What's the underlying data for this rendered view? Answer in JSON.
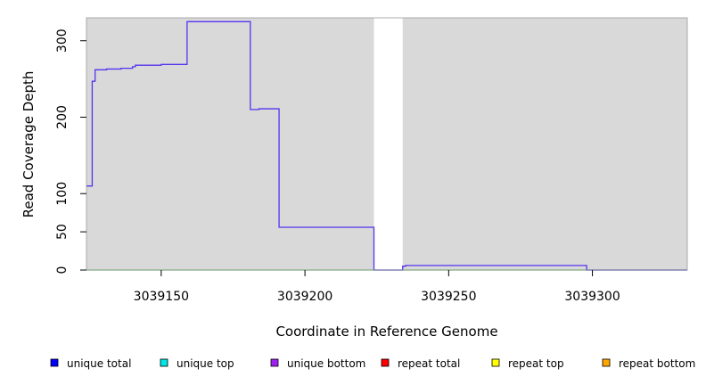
{
  "chart_data": {
    "type": "line",
    "title": "",
    "xlabel": "Coordinate in Reference Genome",
    "ylabel": "Read Coverage Depth",
    "xlim": [
      3039124,
      3039333
    ],
    "ylim": [
      0,
      330
    ],
    "x_ticks": [
      3039150,
      3039200,
      3039250,
      3039300
    ],
    "x_tick_labels": [
      "3039150",
      "3039200",
      "3039250",
      "3039300"
    ],
    "y_ticks": [
      0,
      50,
      100,
      200,
      300
    ],
    "y_tick_labels": [
      "0",
      "50",
      "100",
      "200",
      "300"
    ],
    "gap_region": [
      3039224,
      3039234
    ],
    "grid": false,
    "legend_position": "bottom",
    "series": [
      {
        "name": "unique total",
        "color": "#0000ff",
        "line_color": "#5533ee",
        "step": true,
        "points": [
          [
            3039124,
            110
          ],
          [
            3039126,
            110
          ],
          [
            3039126,
            247
          ],
          [
            3039127,
            247
          ],
          [
            3039127,
            262
          ],
          [
            3039131,
            262
          ],
          [
            3039131,
            263
          ],
          [
            3039136,
            263
          ],
          [
            3039136,
            264
          ],
          [
            3039140,
            264
          ],
          [
            3039140,
            266
          ],
          [
            3039141,
            266
          ],
          [
            3039141,
            268
          ],
          [
            3039150,
            268
          ],
          [
            3039150,
            269
          ],
          [
            3039159,
            269
          ],
          [
            3039159,
            325
          ],
          [
            3039181,
            325
          ],
          [
            3039181,
            210
          ],
          [
            3039184,
            210
          ],
          [
            3039184,
            211
          ],
          [
            3039191,
            211
          ],
          [
            3039191,
            56
          ],
          [
            3039224,
            56
          ],
          [
            3039224,
            0
          ],
          [
            3039234,
            0
          ],
          [
            3039234,
            5
          ],
          [
            3039235,
            5
          ],
          [
            3039235,
            6
          ],
          [
            3039298,
            6
          ],
          [
            3039298,
            0
          ],
          [
            3039333,
            0
          ]
        ]
      },
      {
        "name": "unique top",
        "color": "#00e5e5",
        "line_color": "#00e5e5",
        "step": true,
        "points": []
      },
      {
        "name": "unique bottom",
        "color": "#a020f0",
        "line_color": "#a020f0",
        "step": true,
        "points": []
      },
      {
        "name": "repeat total",
        "color": "#ff0000",
        "line_color": "#66cc66",
        "step": true,
        "points": [
          [
            3039124,
            0
          ],
          [
            3039224,
            0
          ],
          [
            3039234,
            0
          ],
          [
            3039333,
            0
          ]
        ]
      },
      {
        "name": "repeat top",
        "color": "#ffff00",
        "line_color": "#ffff00",
        "step": true,
        "points": []
      },
      {
        "name": "repeat bottom",
        "color": "#ffa500",
        "line_color": "#ffa500",
        "step": true,
        "points": []
      }
    ],
    "colors": {
      "plot_background": "#d9d9d9",
      "gap_fill": "#ffffff"
    }
  }
}
